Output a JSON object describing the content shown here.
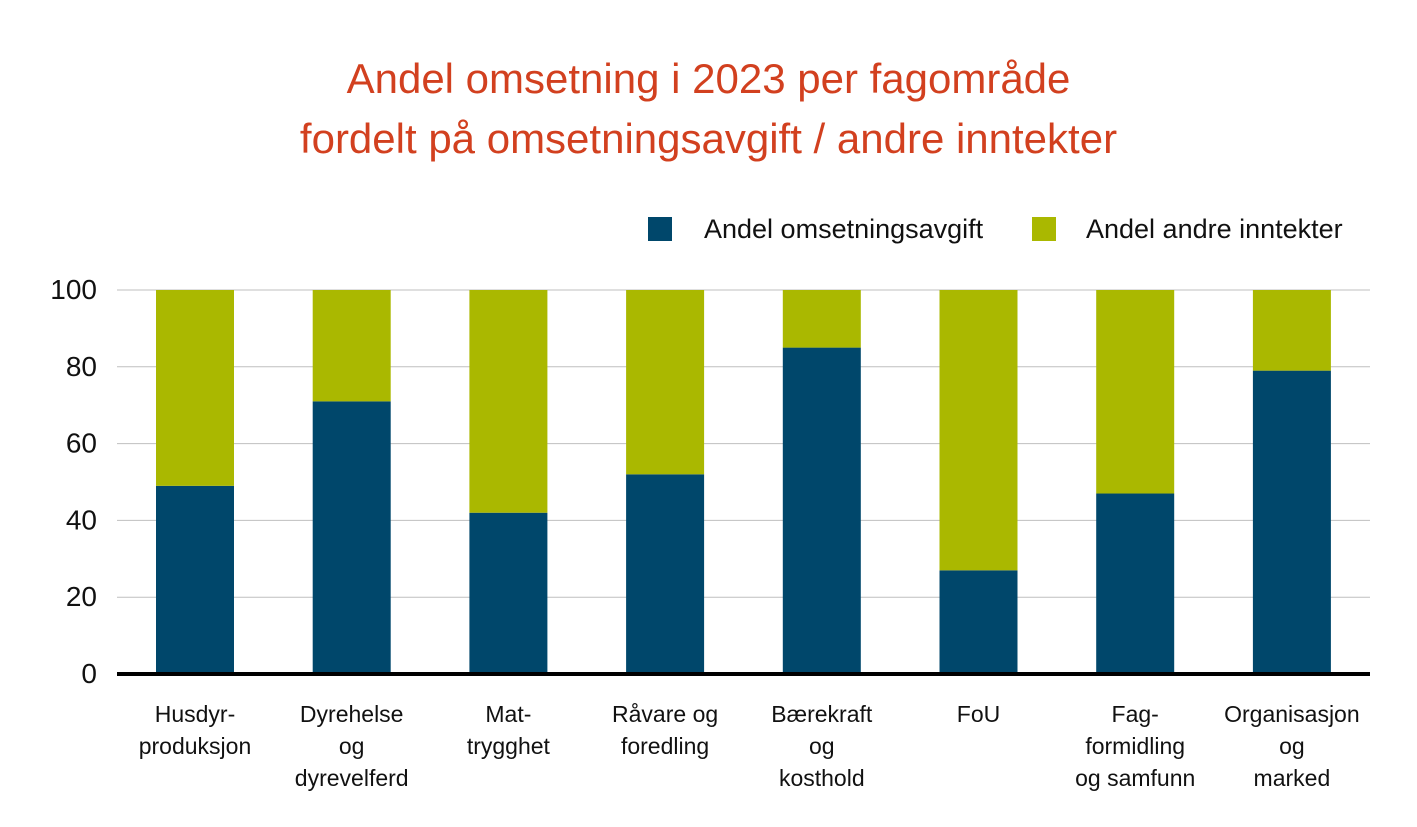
{
  "title_lines": [
    "Andel omsetning i 2023 per fagområde",
    "fordelt på omsetningsavgift / andre inntekter"
  ],
  "colors": {
    "title": "#d2401f",
    "series_1": "#00476b",
    "series_2": "#aab800",
    "grid": "#bfbfbf",
    "axis": "#000000"
  },
  "chart_data": {
    "type": "bar",
    "stacked": true,
    "title": "Andel omsetning i 2023 per fagområde fordelt på omsetningsavgift / andre inntekter",
    "categories": [
      [
        "Husdyr-",
        "produksjon"
      ],
      [
        "Dyrehelse",
        "og",
        "dyrevelferd"
      ],
      [
        "Mat-",
        "trygghet"
      ],
      [
        "Råvare og",
        "foredling"
      ],
      [
        "Bærekraft",
        "og",
        "kosthold"
      ],
      [
        "FoU"
      ],
      [
        "Fag-",
        "formidling",
        "og samfunn"
      ],
      [
        "Organisasjon",
        "og",
        "marked"
      ]
    ],
    "series": [
      {
        "name": "Andel omsetningsavgift",
        "color": "#00476b",
        "values": [
          49,
          71,
          42,
          52,
          85,
          27,
          47,
          79
        ]
      },
      {
        "name": "Andel andre inntekter",
        "color": "#aab800",
        "values": [
          51,
          29,
          58,
          48,
          15,
          73,
          53,
          21
        ]
      }
    ],
    "ylim": [
      0,
      100
    ],
    "yticks": [
      0,
      20,
      40,
      60,
      80,
      100
    ],
    "grid": true,
    "legend": "top-right",
    "xlabel": "",
    "ylabel": ""
  }
}
